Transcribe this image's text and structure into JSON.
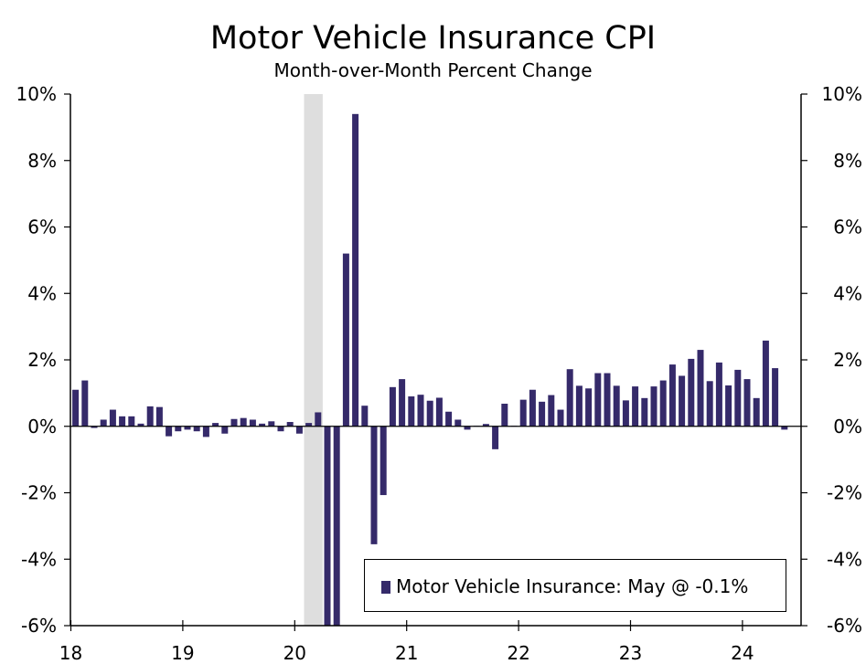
{
  "chart_data": {
    "type": "bar",
    "title": "Motor Vehicle Insurance CPI",
    "subtitle": "Month-over-Month Percent Change",
    "ylim": [
      -6,
      10
    ],
    "yticks": [
      -6,
      -4,
      -2,
      0,
      2,
      4,
      6,
      8,
      10
    ],
    "ytick_labels": [
      "-6%",
      "-4%",
      "-2%",
      "0%",
      "2%",
      "4%",
      "6%",
      "8%",
      "10%"
    ],
    "xtick_labels": [
      "18",
      "19",
      "20",
      "21",
      "22",
      "23",
      "24"
    ],
    "start": "2018-01",
    "recession": {
      "start_index": 25,
      "end_index": 27
    },
    "series": [
      {
        "name": "Motor Vehicle Insurance",
        "color": "#352a6a",
        "values": [
          1.1,
          1.38,
          -0.05,
          0.2,
          0.5,
          0.3,
          0.3,
          0.08,
          0.6,
          0.58,
          -0.3,
          -0.15,
          -0.1,
          -0.15,
          -0.32,
          0.1,
          -0.22,
          0.22,
          0.25,
          0.2,
          0.08,
          0.15,
          -0.15,
          0.13,
          -0.22,
          0.1,
          0.42,
          -6.3,
          -6.4,
          5.2,
          9.4,
          0.62,
          -3.55,
          -2.07,
          1.18,
          1.42,
          0.9,
          0.95,
          0.77,
          0.86,
          0.44,
          0.2,
          -0.1,
          0.0,
          0.07,
          -0.69,
          0.68,
          0.0,
          0.8,
          1.1,
          0.74,
          0.94,
          0.5,
          1.72,
          1.22,
          1.14,
          1.6,
          1.6,
          1.22,
          0.78,
          1.2,
          0.85,
          1.2,
          1.38,
          1.86,
          1.52,
          2.03,
          2.3,
          1.36,
          1.92,
          1.23,
          1.7,
          1.42,
          0.85,
          2.58,
          1.75,
          -0.1
        ]
      }
    ],
    "legend": {
      "label": "Motor Vehicle Insurance: May @ -0.1%"
    }
  }
}
